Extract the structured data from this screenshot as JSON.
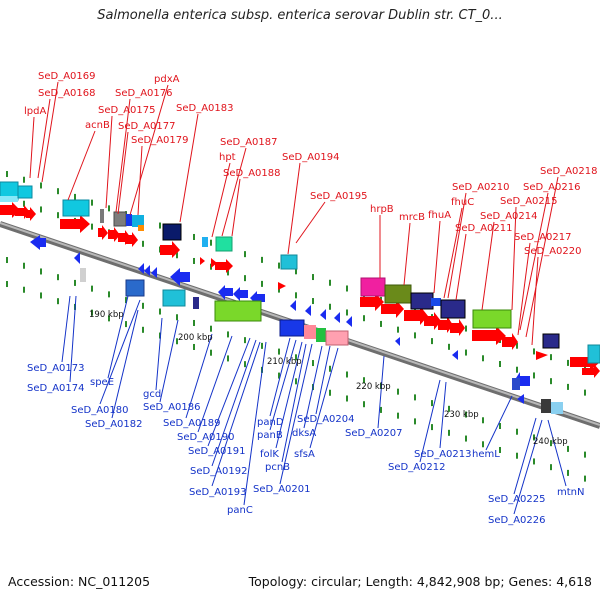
{
  "title": "Salmonella enterica subsp. enterica serovar Dublin str. CT_0...",
  "footer": {
    "accession": "Accession: NC_011205",
    "summary": "Topology: circular; Length: 4,842,908 bp; Genes: 4,618"
  },
  "colors": {
    "forward_label": "#e0141c",
    "reverse_label": "#1433c8",
    "forward_arrow": "#ff0000",
    "reverse_arrow": "#1a2cf0",
    "backbone": "#8c8c8c",
    "tick": "#2a8a2a"
  },
  "scale_labels": [
    "190 kbp",
    "200 kbp",
    "210 kbp",
    "220 kbp",
    "230 kbp",
    "240 kbp"
  ],
  "forward_genes": [
    "lpdA",
    "SeD_A0168",
    "SeD_A0169",
    "acnB",
    "SeD_A0175",
    "SeD_A0176",
    "pdxA",
    "SeD_A0177",
    "SeD_A0179",
    "SeD_A0183",
    "hpt",
    "SeD_A0187",
    "SeD_A0188",
    "SeD_A0194",
    "SeD_A0195",
    "hrpB",
    "mrcB",
    "fhuA",
    "fhuC",
    "SeD_A0210",
    "SeD_A0211",
    "SeD_A0214",
    "SeD_A0215",
    "SeD_A0216",
    "SeD_A0217",
    "SeD_A0218",
    "SeD_A0220"
  ],
  "reverse_genes": [
    "SeD_A0173",
    "SeD_A0174",
    "speE",
    "SeD_A0180",
    "SeD_A0182",
    "gcd",
    "SeD_A0186",
    "SeD_A0189",
    "SeD_A0190",
    "SeD_A0191",
    "SeD_A0192",
    "SeD_A0193",
    "panD",
    "panB",
    "folK",
    "pcnB",
    "dksA",
    "SeD_A0204",
    "sfsA",
    "SeD_A0201",
    "panC",
    "SeD_A0207",
    "SeD_A0212",
    "SeD_A0213",
    "hemL",
    "SeD_A0225",
    "SeD_A0226",
    "mtnN"
  ]
}
